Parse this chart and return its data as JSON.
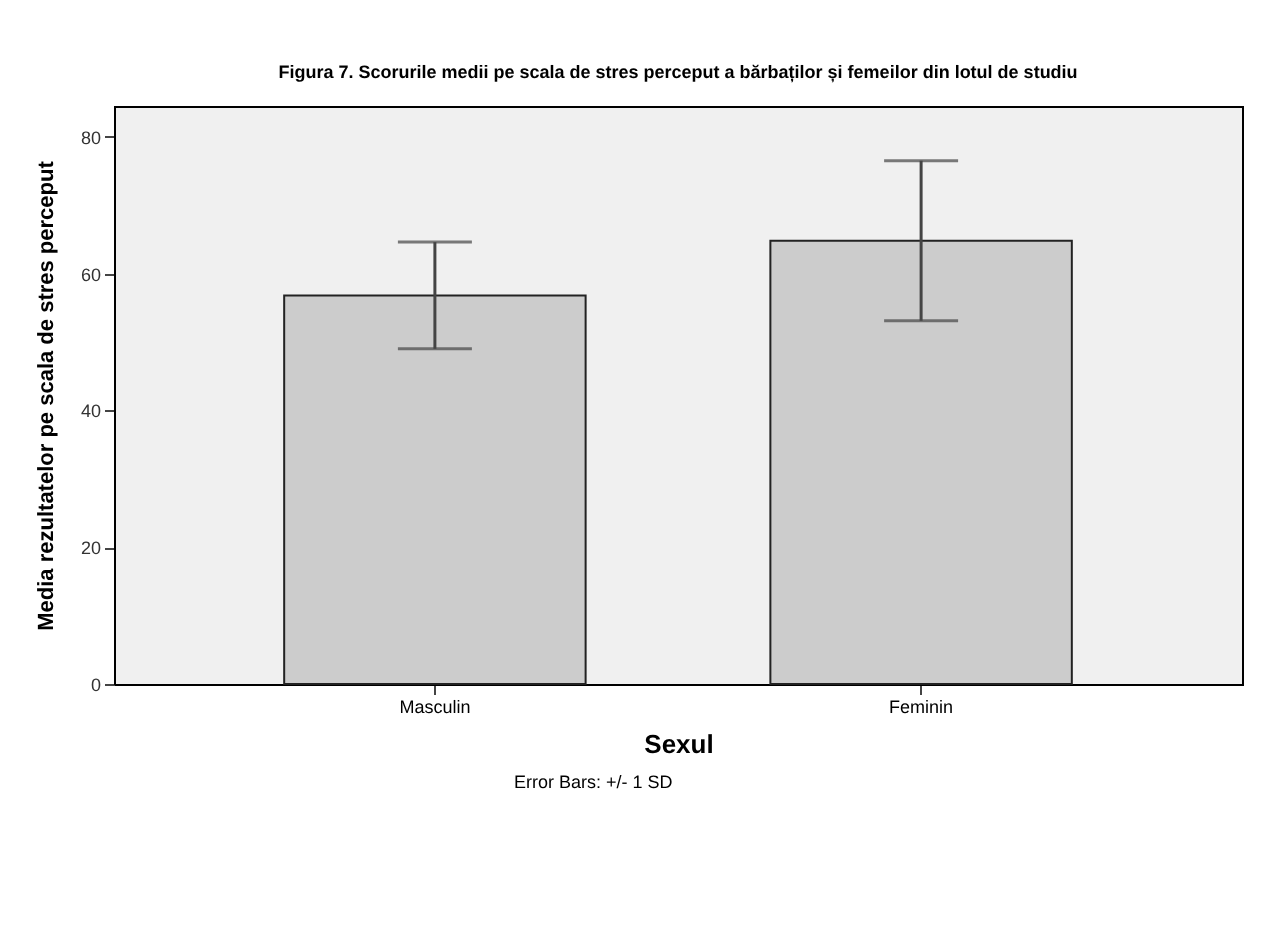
{
  "chart_data": {
    "type": "bar",
    "title": "Figura 7. Scorurile medii pe scala de stres perceput a bărbaților și femeilor din lotul de studiu",
    "xlabel": "Sexul",
    "ylabel": "Media rezultatelor pe scala de stres perceput",
    "categories": [
      "Masculin",
      "Feminin"
    ],
    "values": [
      56.8,
      64.8
    ],
    "errors": [
      7.8,
      11.7
    ],
    "color": "#cccccc",
    "ylim": [
      0,
      84.5
    ],
    "yticks": [
      0,
      20,
      40,
      60,
      80
    ],
    "grid": false,
    "annotations": [
      "Error Bars: +/- 1 SD"
    ]
  }
}
